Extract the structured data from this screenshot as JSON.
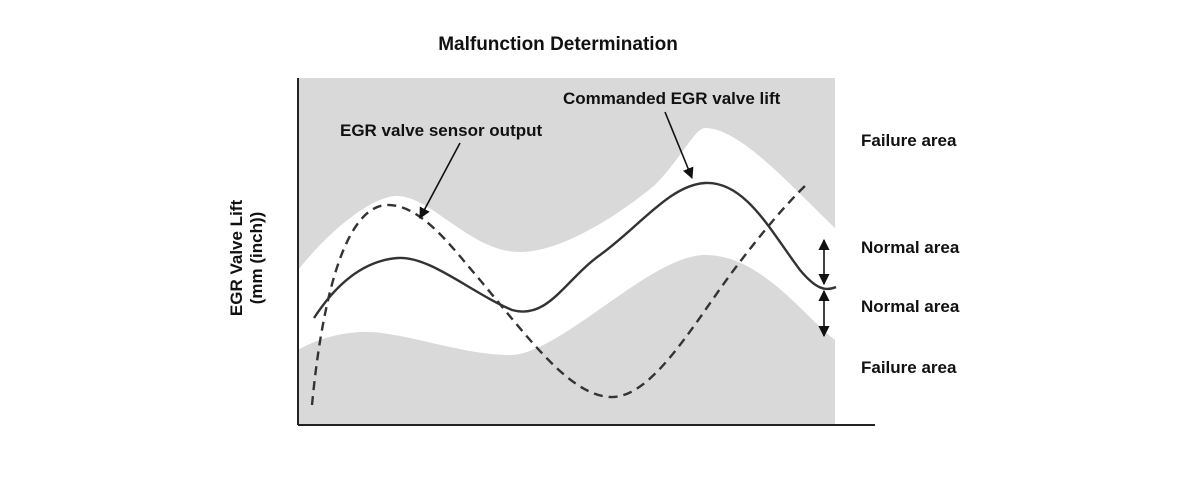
{
  "title": "Malfunction Determination",
  "y_axis_label_line1": "EGR Valve Lift",
  "y_axis_label_line2": "(mm (inch))",
  "annotations": {
    "sensor_output": "EGR valve sensor output",
    "commanded_lift": "Commanded EGR valve lift"
  },
  "zones": {
    "upper_failure": "Failure area",
    "upper_normal": "Normal area",
    "lower_normal": "Normal area",
    "lower_failure": "Failure area"
  },
  "colors": {
    "failure_fill": "#d9d9d9",
    "normal_fill": "#ffffff",
    "curve": "#333333"
  },
  "legend_styles": {
    "sensor_output": "dashed",
    "commanded_lift": "solid"
  }
}
